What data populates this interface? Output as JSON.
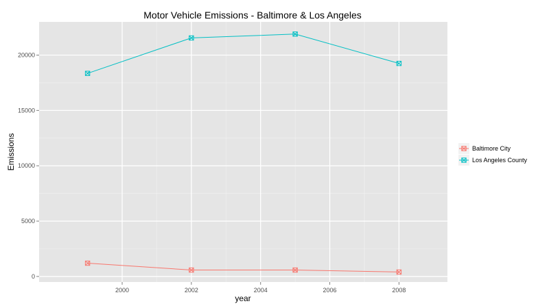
{
  "chart_data": {
    "type": "line",
    "title": "Motor Vehicle Emissions - Baltimore & Los Angeles",
    "xlabel": "year",
    "ylabel": "Emissions",
    "x": [
      1999,
      2002,
      2005,
      2008
    ],
    "xlim": [
      1997.6,
      2009.4
    ],
    "ylim": [
      -500,
      23000
    ],
    "x_ticks": [
      2000,
      2002,
      2004,
      2006,
      2008
    ],
    "y_ticks": [
      0,
      5000,
      10000,
      15000,
      20000
    ],
    "grid": true,
    "legend_position": "right",
    "marker": "square-x",
    "series": [
      {
        "name": "Baltimore City",
        "color": "#f8766d",
        "values": [
          1200,
          580,
          580,
          400
        ]
      },
      {
        "name": "Los Angeles County",
        "color": "#00bfc4",
        "values": [
          18350,
          21550,
          21900,
          19250
        ]
      }
    ]
  }
}
